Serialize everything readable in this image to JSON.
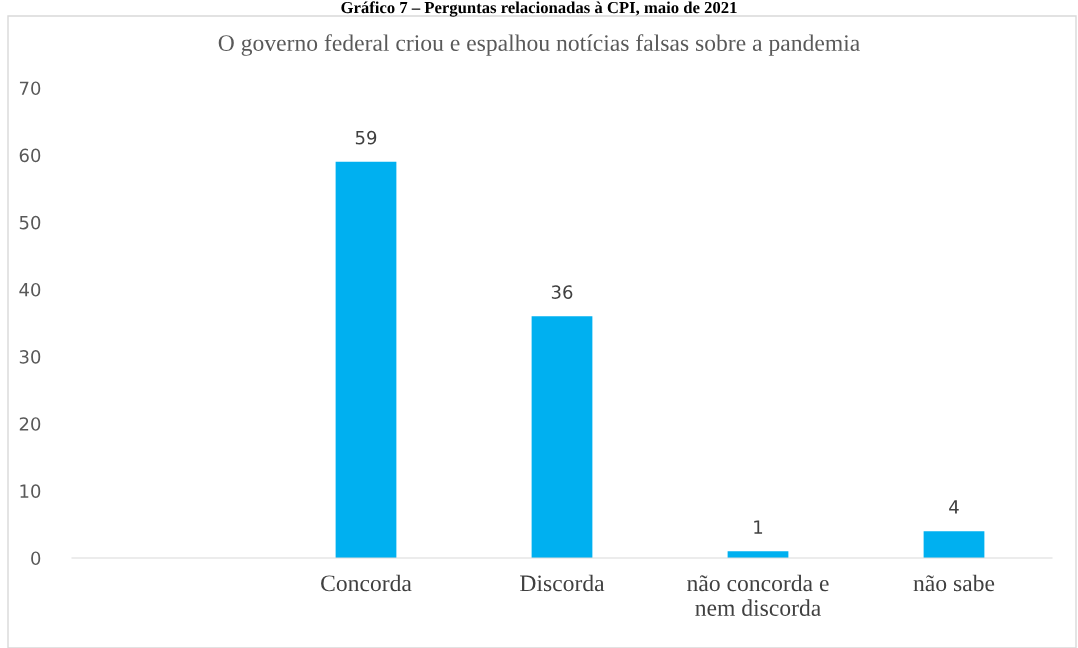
{
  "chart_data": {
    "type": "bar",
    "title": "O governo federal criou e espalhou notícias falsas sobre a pandemia",
    "annotations": [
      "Gráfico 7 – Perguntas relacionadas à CPI, maio de 2021"
    ],
    "categories": [
      null,
      "Concorda",
      "Discorda",
      "não concorda e\nnem discorda",
      "não sabe"
    ],
    "values": [
      null,
      59,
      36,
      1,
      4
    ],
    "color": "#00b0f0",
    "ylim": [
      0,
      70
    ],
    "yticks": [
      0,
      10,
      20,
      30,
      40,
      50,
      60,
      70
    ],
    "data_labels": true,
    "grid": false,
    "legend": false
  }
}
